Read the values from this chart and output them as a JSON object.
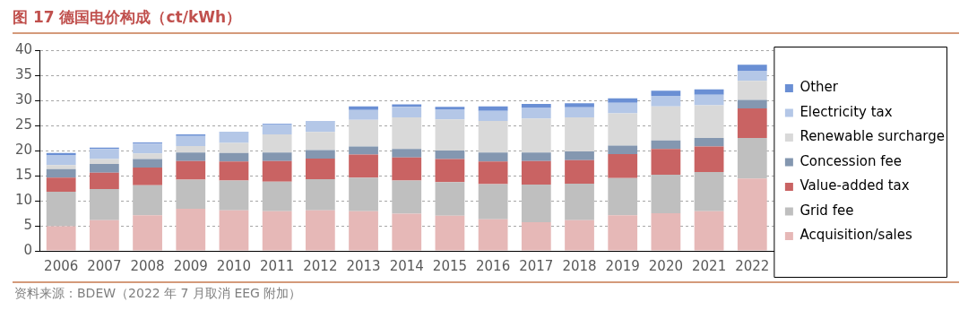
{
  "chart_data": {
    "type": "bar",
    "title": "图 17  德国电价构成（ct/kWh）",
    "stacked": true,
    "grid": "y",
    "legend": "right",
    "categories": [
      "2006",
      "2007",
      "2008",
      "2009",
      "2010",
      "2011",
      "2012",
      "2013",
      "2014",
      "2015",
      "2016",
      "2017",
      "2018",
      "2019",
      "2020",
      "2021",
      "2022"
    ],
    "ylim": [
      0,
      40
    ],
    "yticks": [
      0,
      5,
      10,
      15,
      20,
      25,
      30,
      35,
      40
    ],
    "series": [
      {
        "name": "Acquisition/sales",
        "color": "#e6b8b7",
        "values": [
          4.9,
          6.1,
          7.1,
          8.4,
          8.1,
          7.9,
          8.1,
          7.9,
          7.4,
          7.0,
          6.3,
          5.7,
          6.1,
          7.1,
          7.5,
          7.9,
          14.4
        ]
      },
      {
        "name": "Grid fee",
        "color": "#bfbfbf",
        "values": [
          6.9,
          6.2,
          6.0,
          5.8,
          5.9,
          5.9,
          6.2,
          6.7,
          6.6,
          6.7,
          7.0,
          7.5,
          7.3,
          7.4,
          7.7,
          7.8,
          8.1
        ]
      },
      {
        "name": "Value-added tax",
        "color": "#c96363",
        "values": [
          2.8,
          3.3,
          3.5,
          3.7,
          3.8,
          4.1,
          4.1,
          4.6,
          4.6,
          4.6,
          4.5,
          4.7,
          4.7,
          4.8,
          5.1,
          5.1,
          5.9
        ]
      },
      {
        "name": "Concession fee",
        "color": "#8497b0",
        "values": [
          1.7,
          1.7,
          1.7,
          1.7,
          1.7,
          1.7,
          1.7,
          1.6,
          1.7,
          1.7,
          1.8,
          1.7,
          1.7,
          1.7,
          1.7,
          1.7,
          1.7
        ]
      },
      {
        "name": "Renewable surcharge",
        "color": "#d9d9d9",
        "values": [
          0.8,
          1.0,
          1.1,
          1.3,
          2.0,
          3.6,
          3.6,
          5.3,
          6.3,
          6.2,
          6.3,
          6.8,
          6.8,
          6.4,
          6.8,
          6.5,
          3.8
        ]
      },
      {
        "name": "Electricity tax",
        "color": "#b4c7e7",
        "values": [
          2.0,
          2.0,
          2.0,
          2.0,
          2.1,
          2.0,
          2.1,
          2.0,
          2.1,
          2.0,
          2.0,
          2.1,
          2.0,
          2.1,
          2.1,
          2.1,
          2.0
        ]
      },
      {
        "name": "Other",
        "color": "#6a8fd4",
        "values": [
          0.4,
          0.3,
          0.2,
          0.3,
          0.1,
          0.1,
          0.1,
          0.7,
          0.5,
          0.5,
          0.9,
          0.8,
          0.8,
          0.9,
          1.0,
          1.1,
          1.2
        ]
      }
    ],
    "annotations": [
      "资料来源：BDEW（2022 年 7 月取消 EEG 附加）"
    ]
  }
}
